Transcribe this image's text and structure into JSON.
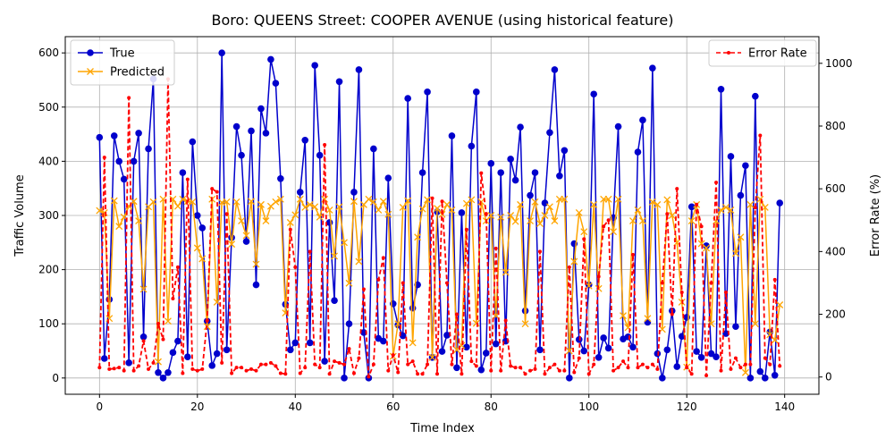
{
  "chart_data": {
    "type": "line",
    "title": "Boro: QUEENS Street: COOPER AVENUE (using historical feature)",
    "xlabel": "Time Index",
    "ylabel": "Traffic Volume",
    "ylabel_right": "Error Rate (%)",
    "xlim": [
      -7,
      147
    ],
    "ylim": [
      -30,
      630
    ],
    "ylim_right": [
      -55,
      1085
    ],
    "x_ticks": [
      0,
      20,
      40,
      60,
      80,
      100,
      120,
      140
    ],
    "y_ticks": [
      0,
      100,
      200,
      300,
      400,
      500,
      600
    ],
    "y_ticks_right": [
      0,
      200,
      400,
      600,
      800,
      1000
    ],
    "grid": true,
    "legend_left": "upper-left",
    "legend_right": "upper-right",
    "series": [
      {
        "name": "True",
        "axis": "left",
        "color": "#0000cc",
        "marker": "circle",
        "values": [
          444,
          36,
          145,
          447,
          400,
          367,
          28,
          400,
          452,
          76,
          423,
          552,
          10,
          0,
          10,
          47,
          68,
          379,
          39,
          436,
          300,
          277,
          105,
          23,
          45,
          600,
          52,
          259,
          464,
          411,
          252,
          456,
          172,
          497,
          452,
          588,
          544,
          368,
          136,
          52,
          65,
          343,
          439,
          65,
          577,
          411,
          31,
          287,
          143,
          547,
          0,
          100,
          343,
          569,
          84,
          0,
          423,
          73,
          68,
          369,
          137,
          98,
          78,
          516,
          129,
          172,
          379,
          528,
          38,
          307,
          49,
          79,
          447,
          19,
          305,
          57,
          428,
          528,
          15,
          46,
          396,
          63,
          379,
          68,
          404,
          365,
          463,
          124,
          337,
          379,
          52,
          323,
          453,
          569,
          373,
          420,
          0,
          248,
          71,
          50,
          172,
          524,
          38,
          74,
          55,
          296,
          464,
          72,
          76,
          57,
          417,
          476,
          103,
          572,
          45,
          0,
          52,
          124,
          21,
          77,
          112,
          316,
          49,
          38,
          244,
          45,
          39,
          533,
          82,
          409,
          95,
          337,
          392,
          0,
          520,
          12,
          0,
          85,
          5,
          323
        ]
      },
      {
        "name": "Predicted",
        "axis": "left",
        "color": "#ffa500",
        "marker": "x",
        "values": [
          309,
          305,
          110,
          327,
          280,
          297,
          317,
          326,
          290,
          164,
          316,
          325,
          30,
          330,
          105,
          330,
          317,
          330,
          326,
          325,
          240,
          220,
          95,
          330,
          140,
          324,
          325,
          247,
          325,
          290,
          263,
          326,
          210,
          320,
          290,
          317,
          325,
          330,
          120,
          287,
          301,
          330,
          315,
          320,
          316,
          297,
          330,
          310,
          225,
          316,
          250,
          175,
          326,
          215,
          320,
          330,
          325,
          310,
          326,
          302,
          40,
          100,
          315,
          327,
          65,
          260,
          312,
          329,
          38,
          313,
          302,
          320,
          310,
          52,
          60,
          322,
          329,
          101,
          325,
          290,
          300,
          115,
          297,
          195,
          300,
          289,
          320,
          100,
          290,
          325,
          285,
          300,
          316,
          290,
          330,
          330,
          50,
          215,
          305,
          270,
          170,
          320,
          165,
          330,
          330,
          270,
          330,
          115,
          93,
          290,
          310,
          290,
          110,
          325,
          320,
          90,
          329,
          300,
          250,
          140,
          20,
          290,
          320,
          248,
          240,
          100,
          290,
          310,
          315,
          310,
          230,
          260,
          10,
          320,
          100,
          330,
          315,
          80,
          70,
          135
        ]
      },
      {
        "name": "Error Rate",
        "axis": "right",
        "color": "#ff0000",
        "marker": "dot",
        "dashed": true,
        "values": [
          30,
          700,
          25,
          27,
          30,
          20,
          890,
          20,
          35,
          115,
          25,
          45,
          170,
          120,
          950,
          250,
          350,
          12,
          630,
          25,
          20,
          25,
          180,
          600,
          590,
          45,
          520,
          12,
          30,
          30,
          20,
          25,
          20,
          40,
          40,
          45,
          35,
          12,
          10,
          470,
          350,
          12,
          30,
          400,
          40,
          30,
          740,
          10,
          50,
          45,
          40,
          90,
          12,
          60,
          280,
          1,
          40,
          310,
          380,
          20,
          70,
          15,
          300,
          40,
          50,
          10,
          10,
          40,
          570,
          10,
          560,
          300,
          40,
          200,
          10,
          470,
          50,
          35,
          650,
          520,
          20,
          410,
          20,
          180,
          35,
          30,
          30,
          10,
          20,
          25,
          400,
          10,
          30,
          40,
          20,
          20,
          350,
          15,
          60,
          440,
          10,
          40,
          320,
          480,
          500,
          20,
          30,
          50,
          30,
          390,
          30,
          40,
          30,
          40,
          25,
          300,
          520,
          200,
          600,
          270,
          30,
          10,
          550,
          480,
          5,
          300,
          620,
          20,
          270,
          25,
          60,
          30,
          40,
          40,
          540,
          770,
          60,
          40,
          310,
          35
        ]
      }
    ]
  }
}
